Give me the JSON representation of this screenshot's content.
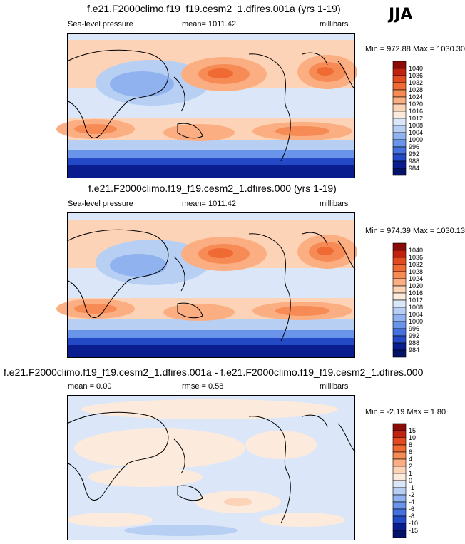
{
  "season": "JJA",
  "panels": [
    {
      "title": "f.e21.F2000climo.f19_f19.cesm2_1.dfires.001a (yrs 1-19)",
      "left_label": "Sea-level pressure",
      "center_label": "mean= 1011.42",
      "units": "millibars",
      "minmax": "Min = 972.88 Max = 1030.30"
    },
    {
      "title": "f.e21.F2000climo.f19_f19.cesm2_1.dfires.000 (yrs 1-19)",
      "left_label": "Sea-level pressure",
      "center_label": "mean= 1011.42",
      "units": "millibars",
      "minmax": "Min = 974.39 Max = 1030.13"
    },
    {
      "title": "f.e21.F2000climo.f19_f19.cesm2_1.dfires.001a - f.e21.F2000climo.f19_f19.cesm2_1.dfires.000",
      "left_label": "mean =   0.00",
      "center_label": "rmse =   0.58",
      "units": "millibars",
      "minmax": "Min =  -2.19 Max =   1.80"
    }
  ],
  "chart_data": [
    {
      "type": "heatmap",
      "title": "f.e21.F2000climo.f19_f19.cesm2_1.dfires.001a (yrs 1-19)",
      "variable": "Sea-level pressure",
      "units": "millibars",
      "mean": 1011.42,
      "min": 972.88,
      "max": 1030.3,
      "colorbar_levels": [
        "1040",
        "1036",
        "1032",
        "1028",
        "1024",
        "1020",
        "1016",
        "1012",
        "1008",
        "1004",
        "1000",
        "996",
        "992",
        "988",
        "984"
      ],
      "colorbar_colors": [
        "#8b0a0a",
        "#c1220e",
        "#e34a1f",
        "#f06a34",
        "#f78b55",
        "#fbae82",
        "#fcd3b6",
        "#fcebdc",
        "#dbe7f8",
        "#b8cff4",
        "#90b2ef",
        "#6a93ea",
        "#4471e0",
        "#2349c6",
        "#0a1d8f",
        "#041268"
      ]
    },
    {
      "type": "heatmap",
      "title": "f.e21.F2000climo.f19_f19.cesm2_1.dfires.000 (yrs 1-19)",
      "variable": "Sea-level pressure",
      "units": "millibars",
      "mean": 1011.42,
      "min": 974.39,
      "max": 1030.13,
      "colorbar_levels": [
        "1040",
        "1036",
        "1032",
        "1028",
        "1024",
        "1020",
        "1016",
        "1012",
        "1008",
        "1004",
        "1000",
        "996",
        "992",
        "988",
        "984"
      ],
      "colorbar_colors": [
        "#8b0a0a",
        "#c1220e",
        "#e34a1f",
        "#f06a34",
        "#f78b55",
        "#fbae82",
        "#fcd3b6",
        "#fcebdc",
        "#dbe7f8",
        "#b8cff4",
        "#90b2ef",
        "#6a93ea",
        "#4471e0",
        "#2349c6",
        "#0a1d8f",
        "#041268"
      ]
    },
    {
      "type": "heatmap",
      "title": "f.e21.F2000climo.f19_f19.cesm2_1.dfires.001a - f.e21.F2000climo.f19_f19.cesm2_1.dfires.000",
      "units": "millibars",
      "mean": 0.0,
      "rmse": 0.58,
      "min": -2.19,
      "max": 1.8,
      "colorbar_levels": [
        "15",
        "10",
        "8",
        "6",
        "4",
        "2",
        "1",
        "0",
        "-1",
        "-2",
        "-4",
        "-6",
        "-8",
        "-10",
        "-15"
      ],
      "colorbar_colors": [
        "#8b0a0a",
        "#c1220e",
        "#e34a1f",
        "#f06a34",
        "#f78b55",
        "#fbae82",
        "#fcd3b6",
        "#fcebdc",
        "#dbe7f8",
        "#b8cff4",
        "#90b2ef",
        "#6a93ea",
        "#4471e0",
        "#2349c6",
        "#0a1d8f",
        "#041268"
      ]
    }
  ]
}
